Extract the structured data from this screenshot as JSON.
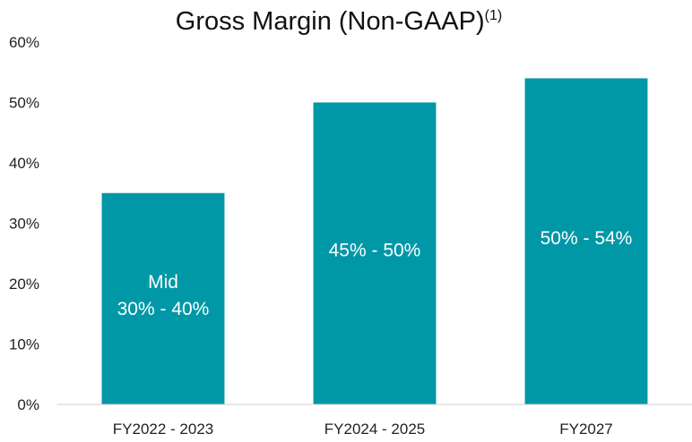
{
  "chart_data": {
    "type": "bar",
    "title": "Gross Margin (Non-GAAP)",
    "title_superscript": "(1)",
    "xlabel": "",
    "ylabel": "",
    "categories": [
      "FY2022 - 2023",
      "FY2024 - 2025",
      "FY2027"
    ],
    "values": [
      35,
      50,
      54
    ],
    "data_labels": [
      [
        "Mid",
        "30% - 40%"
      ],
      [
        "45% - 50%"
      ],
      [
        "50% - 54%"
      ]
    ],
    "ylim": [
      0,
      60
    ],
    "yticks": [
      0,
      10,
      20,
      30,
      40,
      50,
      60
    ],
    "ytick_labels": [
      "0%",
      "10%",
      "20%",
      "30%",
      "40%",
      "50%",
      "60%"
    ],
    "grid": false,
    "legend": "none",
    "bar_color": "#0097A7"
  }
}
